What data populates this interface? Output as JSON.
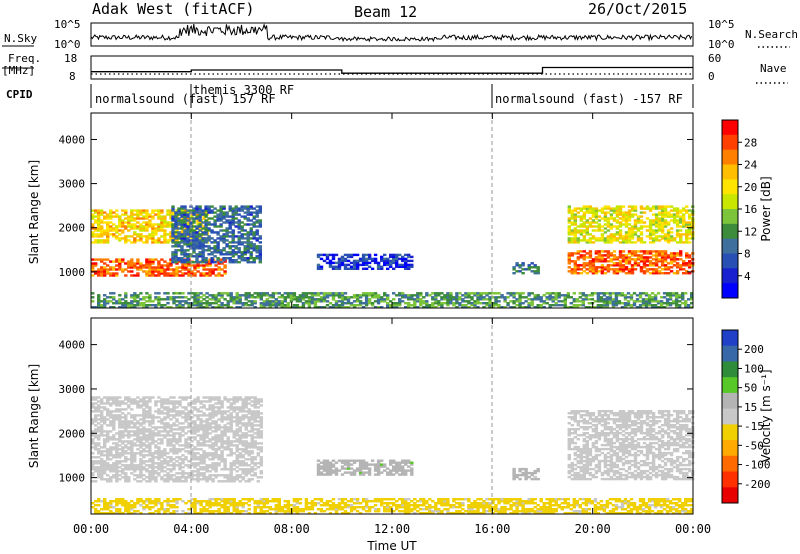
{
  "header": {
    "title_left": "Adak West (fitACF)",
    "title_center": "Beam 12",
    "title_right": "26/Oct/2015"
  },
  "nsky": {
    "label": "N.Sky",
    "tick_top": "10^5",
    "tick_bottom": "10^0",
    "right_tick_top": "10^5",
    "right_tick_bottom": "10^0",
    "right_label": "N.Search"
  },
  "freq": {
    "label_top": "Freq.",
    "label_unit": "[MHz]",
    "tick_top": "18",
    "tick_bottom": "8",
    "right_tick_top": "60",
    "right_tick_bottom": "0",
    "right_label": "Nave"
  },
  "cpid": {
    "label": "CPID",
    "segments": [
      {
        "start": 0,
        "end": 4,
        "text": "normalsound (fast) 157 RF"
      },
      {
        "start": 4,
        "end": 16,
        "text": "themis 3300 RF"
      },
      {
        "start": 16,
        "end": 24,
        "text": "normalsound (fast) -157 RF"
      }
    ]
  },
  "power_panel": {
    "ylabel": "Slant Range [km]",
    "colorbar_label": "Power [dB]",
    "colorbar_ticks": [
      "28",
      "24",
      "20",
      "16",
      "12",
      "8",
      "4"
    ],
    "colorbar_colors": [
      "#ff0000",
      "#ff4000",
      "#ff8000",
      "#ffbf00",
      "#ffe400",
      "#c8e600",
      "#7cc53a",
      "#3c8c3c",
      "#3f6f9c",
      "#2850b4",
      "#1820d0",
      "#0000ff"
    ]
  },
  "velocity_panel": {
    "ylabel": "Slant Range [km]",
    "colorbar_label": "Velocity [m s⁻¹]",
    "colorbar_ticks": [
      "200",
      "100",
      "50",
      "15",
      "-15",
      "-50",
      "-100",
      "-200"
    ],
    "colorbar_colors": [
      "#2040c8",
      "#3868a8",
      "#2e8c3a",
      "#58c828",
      "#b4b4b4",
      "#c8c8c8",
      "#f0d000",
      "#ffaa00",
      "#ff6a00",
      "#ff3000",
      "#e80000"
    ]
  },
  "xaxis": {
    "label": "Time UT",
    "ticks": [
      "00:00",
      "04:00",
      "08:00",
      "12:00",
      "16:00",
      "20:00",
      "00:00"
    ]
  },
  "chart_data": {
    "type": "heatmap",
    "title": "Adak West (fitACF)  Beam 12  26/Oct/2015",
    "xlabel": "Time UT",
    "ylabel": "Slant Range [km]",
    "xlim_hours": [
      0,
      24
    ],
    "ylim_km": [
      180,
      4600
    ],
    "yticks_km": [
      1000,
      2000,
      3000,
      4000
    ],
    "grid": false,
    "vertical_markers_hours": [
      4,
      16
    ],
    "cpid_changes": [
      {
        "hour": 4,
        "cpid": "themis 3300 RF"
      },
      {
        "hour": 16,
        "cpid": "normalsound (fast) -157 RF"
      }
    ],
    "frequency_mhz": [
      {
        "start": 0,
        "end": 4,
        "value": 11.0
      },
      {
        "start": 4,
        "end": 10,
        "value": 11.8
      },
      {
        "start": 10,
        "end": 18,
        "value": 10.3
      },
      {
        "start": 18,
        "end": 24,
        "value": 13.0
      }
    ],
    "power": {
      "colorbar_label": "Power [dB]",
      "range_db": [
        0,
        32
      ],
      "regions": [
        {
          "t0": 0.0,
          "t1": 5.3,
          "r0": 900,
          "r1": 1300,
          "value": 27
        },
        {
          "t0": 0.0,
          "t1": 4.6,
          "r0": 1650,
          "r1": 2400,
          "value": 21
        },
        {
          "t0": 3.2,
          "t1": 6.8,
          "r0": 1200,
          "r1": 2500,
          "value": 9
        },
        {
          "t0": 9.0,
          "t1": 12.8,
          "r0": 1050,
          "r1": 1400,
          "value": 5
        },
        {
          "t0": 16.8,
          "t1": 17.8,
          "r0": 950,
          "r1": 1200,
          "value": 9
        },
        {
          "t0": 19.0,
          "t1": 24.0,
          "r0": 950,
          "r1": 1450,
          "value": 27
        },
        {
          "t0": 19.0,
          "t1": 24.0,
          "r0": 1650,
          "r1": 2500,
          "value": 19
        },
        {
          "t0": 0.0,
          "t1": 24.0,
          "r0": 180,
          "r1": 500,
          "value": 12
        }
      ]
    },
    "velocity": {
      "colorbar_label": "Velocity [m s⁻¹]",
      "range_ms": [
        -200,
        200
      ],
      "regions": [
        {
          "t0": 0.0,
          "t1": 6.8,
          "r0": 900,
          "r1": 2800,
          "value": 0
        },
        {
          "t0": 9.0,
          "t1": 12.8,
          "r0": 1050,
          "r1": 1400,
          "value": 40
        },
        {
          "t0": 16.8,
          "t1": 17.8,
          "r0": 950,
          "r1": 1200,
          "value": 30
        },
        {
          "t0": 19.0,
          "t1": 24.0,
          "r0": 950,
          "r1": 2500,
          "value": 0
        },
        {
          "t0": 0.0,
          "t1": 24.0,
          "r0": 180,
          "r1": 500,
          "value": -30
        }
      ]
    }
  }
}
